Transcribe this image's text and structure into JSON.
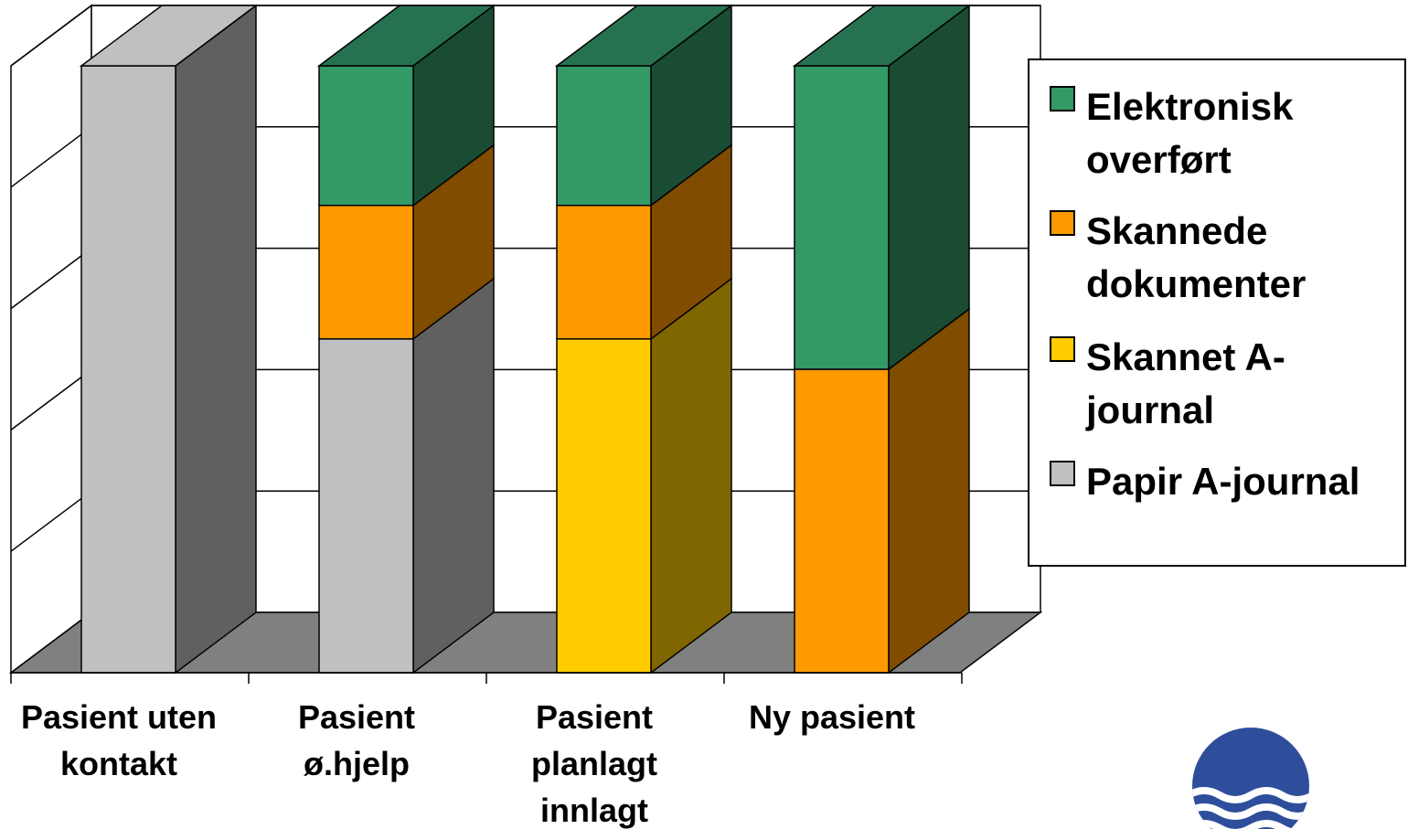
{
  "chart_data": {
    "type": "bar",
    "stacked": true,
    "three_d": true,
    "categories": [
      [
        "Pasient uten",
        "kontakt"
      ],
      [
        "Pasient",
        "ø.hjelp"
      ],
      [
        "Pasient",
        "planlagt",
        "innlagt"
      ],
      [
        "Ny pasient"
      ]
    ],
    "series": [
      {
        "name": "Papir A-journal",
        "values": [
          100,
          55,
          0,
          0
        ]
      },
      {
        "name": "Skannet A-journal",
        "values": [
          0,
          0,
          55,
          0
        ]
      },
      {
        "name": "Skannede dokumenter",
        "values": [
          0,
          22,
          22,
          50
        ]
      },
      {
        "name": "Elektronisk overført",
        "values": [
          0,
          23,
          23,
          50
        ]
      }
    ],
    "ylim": [
      0,
      100
    ],
    "grid": true,
    "legend_position": "right",
    "title": "",
    "xlabel": "",
    "ylabel": ""
  },
  "legend": {
    "items": [
      {
        "label": "Elektronisk overført",
        "series_index": 3
      },
      {
        "label": "Skannede dokumenter",
        "series_index": 2
      },
      {
        "label": "Skannet A-journal",
        "series_index": 1
      },
      {
        "label": "Papir A-journal",
        "series_index": 0
      }
    ]
  },
  "colors": {
    "series_front": [
      "#c0c0c0",
      "#ffcc00",
      "#ff9900",
      "#339966"
    ],
    "series_side": [
      "#606060",
      "#806600",
      "#7f4c00",
      "#1a4c33"
    ],
    "series_top": [
      "#c0c0c0",
      "#ffcc00",
      "#ff9900",
      "#267250"
    ],
    "floor": "#808080",
    "logo": "#2e4e9c"
  }
}
